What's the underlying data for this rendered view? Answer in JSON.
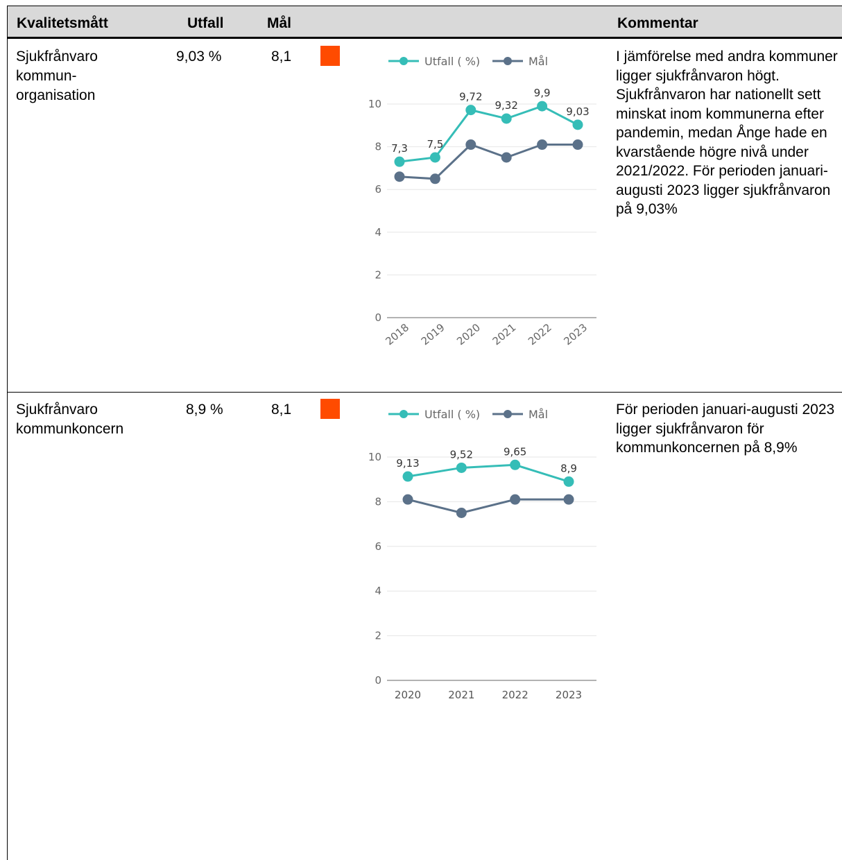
{
  "table": {
    "headers": {
      "measure": "Kvalitetsmått",
      "outcome": "Utfall",
      "target": "Mål",
      "comment": "Kommentar"
    },
    "rows": [
      {
        "measure": "Sjukfrånvaro kommun-organisation",
        "measure_lines": [
          "Sjukfrånvaro",
          "kommun-",
          "organisation"
        ],
        "outcome": "9,03 %",
        "target": "8,1",
        "status_color": "#ff4b00",
        "comment": "I jämförelse med andra kommuner ligger sjukfrånvaron högt. Sjukfrånvaron har nationellt sett minskat inom kommunerna efter pandemin, medan Ånge hade en kvarstående högre nivå under 2021/2022. För perioden januari-augusti 2023 ligger sjukfrånvaron på 9,03%"
      },
      {
        "measure": "Sjukfrånvaro kommunkoncern",
        "measure_lines": [
          "Sjukfrånvaro",
          "kommunkoncern"
        ],
        "outcome": "8,9 %",
        "target": "8,1",
        "status_color": "#ff4b00",
        "comment": "För perioden januari-augusti 2023 ligger sjukfrånvaron för kommunkoncernen på 8,9%"
      }
    ]
  },
  "chart_data": [
    {
      "type": "line",
      "title": "",
      "x": [
        "2018",
        "2019",
        "2020",
        "2021",
        "2022",
        "2023"
      ],
      "series": [
        {
          "name": "Utfall ( %)",
          "color": "#35bdb7",
          "values": [
            7.3,
            7.5,
            9.72,
            9.32,
            9.9,
            9.03
          ],
          "labels": [
            "7,3",
            "7,5",
            "9,72",
            "9,32",
            "9,9",
            "9,03"
          ]
        },
        {
          "name": "Mål",
          "color": "#5b7189",
          "values": [
            6.6,
            6.5,
            8.1,
            7.5,
            8.1,
            8.1
          ]
        }
      ],
      "ylim": [
        0,
        10
      ],
      "yticks": [
        0,
        2,
        4,
        6,
        8,
        10
      ],
      "xlabel_rotated": true,
      "legend": "top",
      "grid": true
    },
    {
      "type": "line",
      "title": "",
      "x": [
        "2020",
        "2021",
        "2022",
        "2023"
      ],
      "series": [
        {
          "name": "Utfall ( %)",
          "color": "#35bdb7",
          "values": [
            9.13,
            9.52,
            9.65,
            8.9
          ],
          "labels": [
            "9,13",
            "9,52",
            "9,65",
            "8,9"
          ]
        },
        {
          "name": "Mål",
          "color": "#5b7189",
          "values": [
            8.1,
            7.5,
            8.1,
            8.1
          ]
        }
      ],
      "ylim": [
        0,
        10
      ],
      "yticks": [
        0,
        2,
        4,
        6,
        8,
        10
      ],
      "xlabel_rotated": false,
      "legend": "top",
      "grid": true
    }
  ]
}
